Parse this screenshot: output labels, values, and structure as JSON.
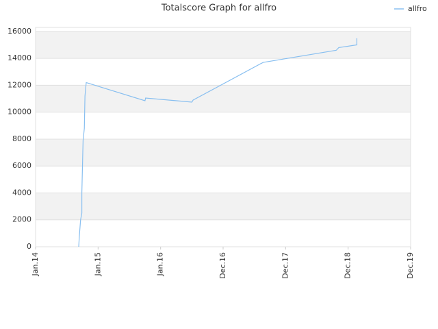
{
  "chart_data": {
    "type": "line",
    "title": "Totalscore Graph for allfro",
    "x": [
      2014.69,
      2014.7,
      2014.72,
      2014.74,
      2014.74,
      2014.76,
      2014.78,
      2014.79,
      2014.81,
      2015.75,
      2015.76,
      2016.5,
      2016.52,
      2017.64,
      2018.81,
      2018.85,
      2019.14,
      2019.14
    ],
    "series": [
      {
        "name": "allfro",
        "color": "#88bff0",
        "values": [
          0,
          800,
          2000,
          2500,
          4000,
          7900,
          8800,
          11200,
          12200,
          10850,
          11050,
          10750,
          10900,
          13700,
          14600,
          14800,
          15000,
          15500
        ]
      }
    ],
    "xlim": [
      2014,
      2020
    ],
    "xticks": [
      {
        "value": 2014,
        "label": "Jan.14"
      },
      {
        "value": 2015,
        "label": "Jan.15"
      },
      {
        "value": 2016,
        "label": "Jan.16"
      },
      {
        "value": 2017,
        "label": "Dec.16"
      },
      {
        "value": 2018,
        "label": "Dec.17"
      },
      {
        "value": 2019,
        "label": "Dec.18"
      },
      {
        "value": 2020,
        "label": "Dec.19"
      }
    ],
    "ylim": [
      0,
      16300
    ],
    "yticks": [
      0,
      2000,
      4000,
      6000,
      8000,
      10000,
      12000,
      14000,
      16000
    ],
    "grid": true,
    "legend": "top-right"
  }
}
